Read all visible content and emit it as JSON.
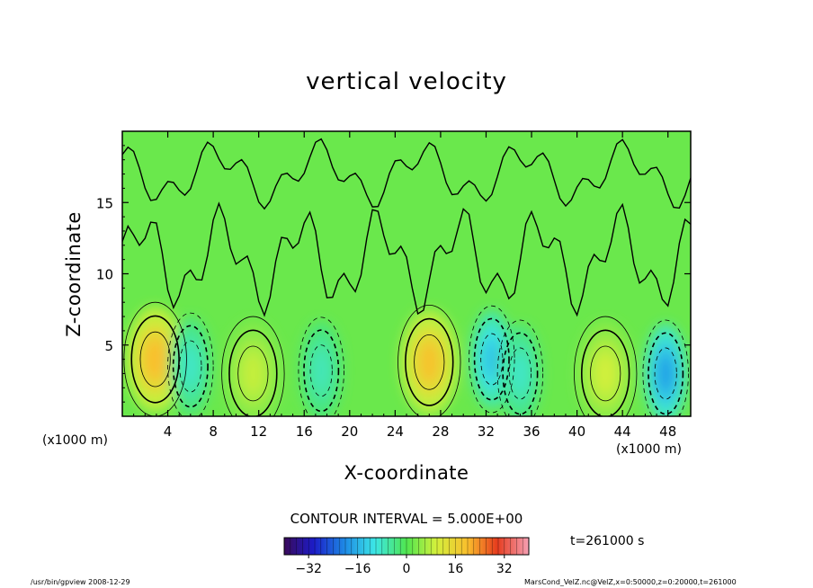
{
  "chart_data": {
    "type": "heatmap",
    "title": "vertical velocity",
    "xlabel": "X-coordinate",
    "ylabel": "Z-coordinate",
    "x_unit": "(x1000 m)",
    "x_range": [
      0,
      50
    ],
    "y_range": [
      0,
      20
    ],
    "x_ticks": [
      4,
      8,
      12,
      16,
      20,
      24,
      28,
      32,
      36,
      40,
      44,
      48
    ],
    "y_ticks": [
      5,
      10,
      15
    ],
    "contour_interval": "CONTOUR INTERVAL = 5.000E+00",
    "time_label": "t=261000 s",
    "colorbar": {
      "range": [
        -40,
        40
      ],
      "ticks": [
        -32,
        -16,
        0,
        16,
        32
      ]
    },
    "features": [
      {
        "kind": "updraft",
        "x": 2.9,
        "z": 4.0,
        "value": 20
      },
      {
        "kind": "downdraft",
        "x": 6.0,
        "z": 3.5,
        "value": -8
      },
      {
        "kind": "updraft",
        "x": 11.5,
        "z": 3.0,
        "value": 9
      },
      {
        "kind": "downdraft",
        "x": 17.5,
        "z": 3.2,
        "value": -7
      },
      {
        "kind": "updraft",
        "x": 27.0,
        "z": 3.8,
        "value": 19
      },
      {
        "kind": "downdraft",
        "x": 32.5,
        "z": 4.0,
        "value": -14
      },
      {
        "kind": "downdraft",
        "x": 35.0,
        "z": 3.0,
        "value": -8
      },
      {
        "kind": "updraft",
        "x": 42.5,
        "z": 3.0,
        "value": 10
      },
      {
        "kind": "downdraft",
        "x": 47.8,
        "z": 3.0,
        "value": -18
      }
    ],
    "grid": false
  },
  "footer": {
    "left": "/usr/bin/gpview   2008-12-29",
    "right": "MarsCond_VelZ.nc@VelZ,x=0:50000,z=0:20000,t=261000"
  }
}
